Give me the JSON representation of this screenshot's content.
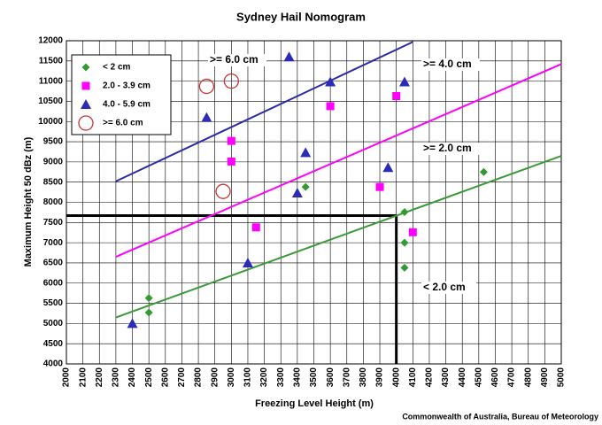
{
  "chart_data": {
    "type": "scatter",
    "title": "Sydney Hail Nomogram",
    "x_label": "Freezing Level Height (m)",
    "y_label": "Maximum Height 50 dBz (m)",
    "source": "Commonwealth of Australia, Bureau of Meteorology",
    "xlim": [
      2000,
      5000
    ],
    "xticks": [
      2000,
      2100,
      2200,
      2300,
      2400,
      2500,
      2600,
      2700,
      2800,
      2900,
      3000,
      3100,
      3200,
      3300,
      3400,
      3500,
      3600,
      3700,
      3800,
      3900,
      4000,
      4100,
      4200,
      4300,
      4400,
      4500,
      4600,
      4700,
      4800,
      4900,
      5000
    ],
    "ylim": [
      4000,
      12000
    ],
    "yticks": [
      4000,
      4500,
      5000,
      5500,
      6000,
      6500,
      7000,
      7500,
      8000,
      8500,
      9000,
      9500,
      10000,
      10500,
      11000,
      11500,
      12000
    ],
    "grid": true,
    "legend": "upper left",
    "series": [
      {
        "name": "< 2 cm",
        "color": "#339933",
        "marker": "diamond",
        "x": [
          2500,
          2500,
          3450,
          4050,
          4050,
          4050,
          4530
        ],
        "values": [
          5630,
          5270,
          8380,
          7760,
          7000,
          6380,
          8750
        ]
      },
      {
        "name": "2.0 - 3.9 cm",
        "color": "#ff00ff",
        "marker": "square",
        "x": [
          3000,
          3000,
          3150,
          3600,
          3900,
          4000,
          4100
        ],
        "values": [
          9520,
          9010,
          7380,
          10380,
          8380,
          10630,
          7260
        ]
      },
      {
        "name": "4.0 - 5.9 cm",
        "color": "#2b2bb8",
        "marker": "triangle",
        "x": [
          2400,
          2850,
          3100,
          3350,
          3400,
          3450,
          3600,
          3950,
          4050
        ],
        "values": [
          5000,
          10100,
          6500,
          11600,
          8230,
          9230,
          10980,
          8860,
          10980
        ]
      },
      {
        "name": ">= 6.0 cm",
        "color": "#cc3333",
        "marker": "circle",
        "x": [
          2850,
          3000,
          2950
        ],
        "values": [
          10870,
          11000,
          8270
        ]
      }
    ],
    "fit_lines": [
      {
        "label": ">= 6.0 cm",
        "color": "#2b2ba8",
        "x": [
          2300,
          4100
        ],
        "values": [
          8520,
          11970
        ]
      },
      {
        "label": ">= 4.0 cm",
        "color": "#ff00ff",
        "x": [
          2300,
          5000
        ],
        "values": [
          6650,
          11420
        ]
      },
      {
        "label": ">= 2.0 cm",
        "color": "#3a9a3a",
        "x": [
          2300,
          5000
        ],
        "values": [
          5150,
          9150
        ]
      }
    ],
    "threshold_label": "< 2.0 cm",
    "reference": {
      "x": 4000,
      "y": 7670
    }
  }
}
